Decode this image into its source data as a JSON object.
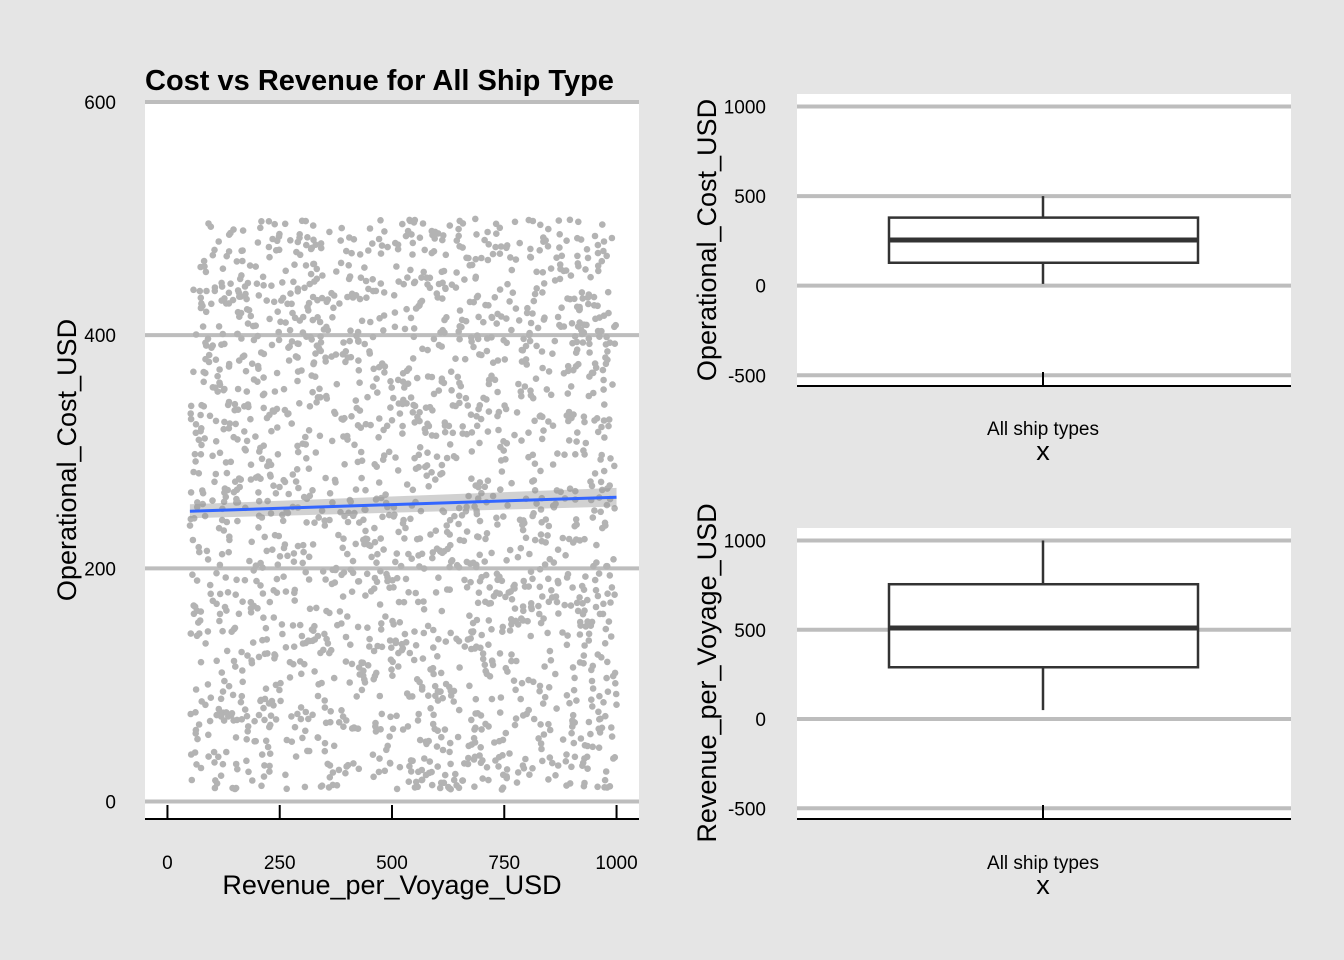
{
  "chart_data": [
    {
      "id": "scatter",
      "type": "scatter",
      "title": "Cost vs Revenue for All Ship Type",
      "xlabel": "Revenue_per_Voyage_USD",
      "ylabel": "Operational_Cost_USD",
      "xlim": [
        -50,
        1050
      ],
      "ylim": [
        -15,
        600
      ],
      "xticks": [
        0,
        250,
        500,
        750,
        1000
      ],
      "yticks": [
        0,
        200,
        400,
        600
      ],
      "grid": "horizontal",
      "point_color": "#b3b3b3",
      "points": {
        "count": 2000,
        "x_range": [
          50,
          1000
        ],
        "y_range": [
          10,
          500
        ],
        "distribution": "uniform"
      },
      "trend_line": {
        "color": "#3366ff",
        "start": [
          50,
          249
        ],
        "end": [
          1000,
          261
        ],
        "band_halfwidth": 6
      }
    },
    {
      "id": "box-cost",
      "type": "box",
      "xlabel": "x",
      "ylabel": "Operational_Cost_USD",
      "category": "All ship types",
      "ylim": [
        -560,
        1070
      ],
      "yticks": [
        -500,
        0,
        500,
        1000
      ],
      "grid": "horizontal",
      "stats": {
        "min": 10,
        "q1": 128,
        "median": 255,
        "q3": 380,
        "max": 500
      }
    },
    {
      "id": "box-revenue",
      "type": "box",
      "xlabel": "x",
      "ylabel": "Revenue_per_Voyage_USD",
      "category": "All ship types",
      "ylim": [
        -560,
        1070
      ],
      "yticks": [
        -500,
        0,
        500,
        1000
      ],
      "grid": "horizontal",
      "stats": {
        "min": 50,
        "q1": 290,
        "median": 510,
        "q3": 755,
        "max": 1000
      }
    }
  ]
}
